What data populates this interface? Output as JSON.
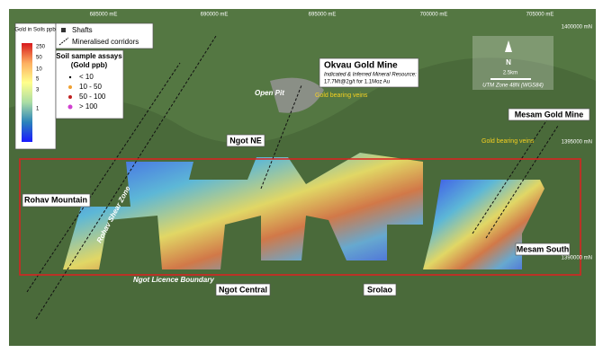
{
  "grid": {
    "eastings": [
      "685000 mE",
      "690000 mE",
      "695000 mE",
      "700000 mE",
      "705000 mE"
    ],
    "northings": [
      "1400000 mN",
      "1395000 mN",
      "1390000 mN"
    ]
  },
  "legend": {
    "scale_title": "Gold in Soils ppb",
    "scale_ticks": [
      "250",
      "50",
      "10",
      "5",
      "3",
      "1"
    ],
    "shafts": "Shafts",
    "corridors": "Mineralised corridors",
    "assay_title": "Soil sample assays",
    "assay_unit": "(Gold ppb)",
    "classes": [
      "< 10",
      "10 - 50",
      "50 - 100",
      "> 100"
    ]
  },
  "north": {
    "arrow": "N",
    "scale": "2.5km",
    "projection": "UTM Zone 48N (WGS84)"
  },
  "labels": {
    "okvau": "Okvau Gold Mine",
    "resource_1": "Indicated & Inferred Mineral Resource:",
    "resource_2": "17.7Mt@2g/t for 1.1Moz Au",
    "open_pit": "Open Pit",
    "veins_okvau": "Gold bearing veins",
    "ngot_ne": "Ngot NE",
    "mesam_mine": "Mesam Gold Mine",
    "veins_mesam": "Gold bearing veins",
    "rohav": "Rohav Mountain",
    "shear": "Rohav Shear Zone",
    "boundary": "Ngot Licence Boundary",
    "ngot_central": "Ngot Central",
    "srolao": "Srolao",
    "mesam_south": "Mesam South"
  }
}
